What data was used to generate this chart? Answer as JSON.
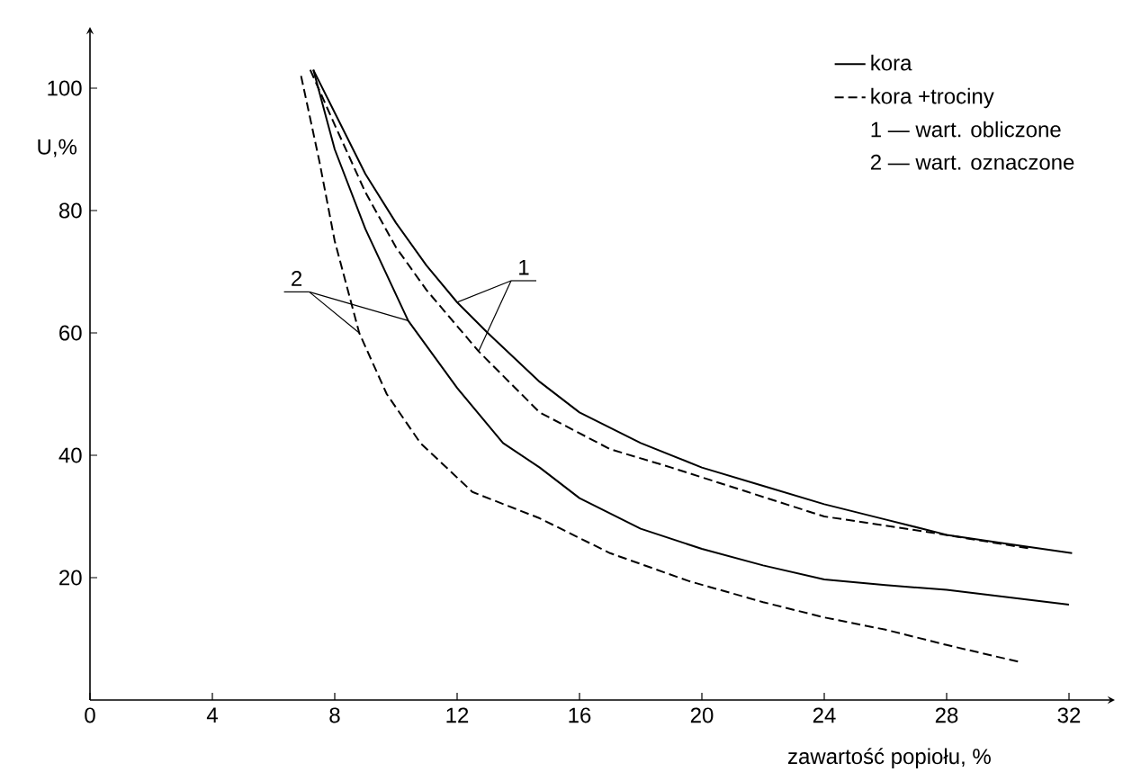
{
  "chart_data": {
    "type": "line",
    "xlabel": "zawartość popiołu, %",
    "ylabel": "U,%",
    "xlim": [
      0,
      33.5
    ],
    "ylim": [
      0,
      110
    ],
    "xticks": [
      {
        "value": 0,
        "label": "0"
      },
      4,
      8,
      12,
      16,
      20,
      24,
      28,
      32
    ],
    "yticks": [
      20,
      40,
      60,
      80,
      100
    ],
    "legend": "top right",
    "marker": "none",
    "annotations": [
      {
        "text": "1",
        "x": 12,
        "y": 65
      },
      {
        "text": "2",
        "x": 10.4,
        "y": 62
      },
      "1 — wart. obliczone",
      "2 — wart. oznaczone"
    ],
    "series": [
      {
        "name": "kora",
        "color": "#000000",
        "line_style": "solid",
        "x": [
          7.3,
          8,
          9,
          10,
          11,
          12,
          13,
          14.7,
          16,
          18,
          20,
          22,
          24,
          26,
          28,
          30,
          32.1
        ],
        "values": [
          103,
          96,
          86,
          78,
          71,
          65,
          60,
          52,
          47,
          42,
          38,
          35,
          32,
          29.5,
          27,
          25.5,
          24
        ]
      },
      {
        "name": "kora +trociny",
        "color": "#000000",
        "line_style": "dashed",
        "x": [
          7.2,
          8,
          9,
          10,
          11,
          12.7,
          14.7,
          17,
          19,
          21.5,
          24,
          27.2,
          30.8
        ],
        "values": [
          103,
          94,
          83,
          74,
          67,
          57,
          47,
          41,
          38,
          34,
          30,
          27.6,
          24.7
        ]
      },
      {
        "color": "#000000",
        "line_style": "solid",
        "x": [
          7.3,
          8,
          9,
          10.4,
          12,
          13.5,
          14.7,
          16,
          18,
          20,
          22,
          24,
          26,
          28,
          30,
          32
        ],
        "values": [
          103,
          90,
          77,
          62,
          51,
          42,
          38,
          33,
          28,
          24.7,
          22,
          19.7,
          18.8,
          18,
          16.8,
          15.6
        ]
      },
      {
        "color": "#000000",
        "line_style": "dashed",
        "x": [
          6.9,
          7.5,
          8,
          8.8,
          9.7,
          10.8,
          12.5,
          14.7,
          17,
          19.6,
          22,
          24,
          26,
          28,
          30.4
        ],
        "values": [
          102,
          88,
          75,
          60,
          50,
          42,
          34,
          29.7,
          24,
          19.4,
          16,
          13.5,
          11.5,
          9,
          6.2
        ]
      }
    ]
  }
}
